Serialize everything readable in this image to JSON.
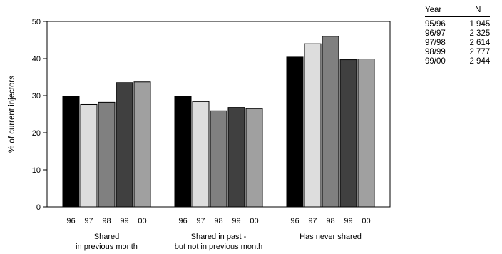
{
  "chart_data": {
    "type": "bar",
    "ylabel": "% of current injectors",
    "ylim": [
      0,
      50
    ],
    "yticks": [
      0,
      10,
      20,
      30,
      40,
      50
    ],
    "grid": false,
    "years": [
      "96",
      "97",
      "98",
      "99",
      "00"
    ],
    "year_colors": [
      "#000000",
      "#dddddd",
      "#808080",
      "#404040",
      "#a0a0a0"
    ],
    "groups": [
      {
        "label_lines": [
          "Shared",
          "in previous month"
        ],
        "values": [
          29.8,
          27.6,
          28.2,
          33.5,
          33.7
        ]
      },
      {
        "label_lines": [
          "Shared in past -",
          "but not in previous month"
        ],
        "values": [
          29.9,
          28.4,
          25.9,
          26.8,
          26.5
        ]
      },
      {
        "label_lines": [
          "Has never shared"
        ],
        "values": [
          40.4,
          44.0,
          46.0,
          39.7,
          39.9
        ]
      }
    ]
  },
  "legend_table": {
    "headers": [
      "Year",
      "N"
    ],
    "rows": [
      [
        "95/96",
        "1 945"
      ],
      [
        "96/97",
        "2 325"
      ],
      [
        "97/98",
        "2 614"
      ],
      [
        "98/99",
        "2 777"
      ],
      [
        "99/00",
        "2 944"
      ]
    ]
  }
}
